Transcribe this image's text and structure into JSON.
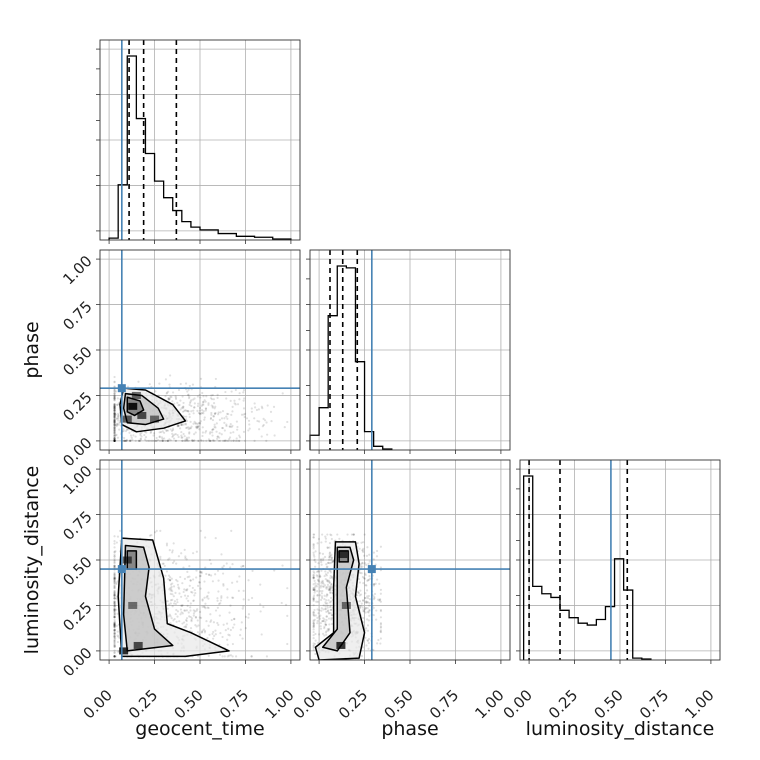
{
  "chart_data": {
    "type": "corner",
    "parameters": [
      "geocent_time",
      "phase",
      "luminosity_distance"
    ],
    "axis_labels": [
      "geocent_time",
      "phase",
      "luminosity_distance"
    ],
    "range": [
      -0.05,
      1.05
    ],
    "tick_values": [
      0.0,
      0.25,
      0.5,
      0.75,
      1.0
    ],
    "tick_labels": [
      "0.00",
      "0.25",
      "0.50",
      "0.75",
      "1.00"
    ],
    "grid": true,
    "truths": [
      0.07,
      0.29,
      0.45
    ],
    "truth_color": "#4682b4",
    "contour_color": "#000000",
    "histograms": [
      {
        "parameter": "geocent_time",
        "bin_edges": [
          0.0,
          0.05,
          0.1,
          0.15,
          0.2,
          0.25,
          0.3,
          0.35,
          0.4,
          0.45,
          0.5,
          0.6,
          0.7,
          0.8,
          0.9,
          1.0
        ],
        "counts": [
          0.01,
          0.3,
          1.0,
          0.66,
          0.47,
          0.32,
          0.23,
          0.16,
          0.1,
          0.07,
          0.055,
          0.035,
          0.02,
          0.015,
          0.005
        ],
        "quantiles": [
          0.11,
          0.19,
          0.37
        ]
      },
      {
        "parameter": "phase",
        "bin_edges": [
          -0.05,
          0.0,
          0.05,
          0.1,
          0.15,
          0.2,
          0.25,
          0.3,
          0.35,
          0.4
        ],
        "counts": [
          0.08,
          0.23,
          0.73,
          1.0,
          0.99,
          0.48,
          0.1,
          0.02,
          0.005
        ],
        "quantiles": [
          0.06,
          0.13,
          0.21
        ]
      },
      {
        "parameter": "luminosity_distance",
        "bin_edges": [
          -0.03,
          0.02,
          0.07,
          0.12,
          0.17,
          0.22,
          0.27,
          0.32,
          0.37,
          0.42,
          0.47,
          0.52,
          0.57,
          0.62,
          0.67
        ],
        "counts": [
          1.0,
          0.4,
          0.36,
          0.34,
          0.27,
          0.23,
          0.2,
          0.19,
          0.22,
          0.29,
          0.55,
          0.38,
          0.01,
          0.005
        ],
        "quantiles": [
          0.0,
          0.17,
          0.54
        ]
      }
    ],
    "scatter_panels": [
      {
        "x": "geocent_time",
        "y": "phase",
        "core_density": [
          {
            "x": 0.13,
            "y": 0.19,
            "level": 1.0
          },
          {
            "x": 0.18,
            "y": 0.14,
            "level": 0.6
          },
          {
            "x": 0.1,
            "y": 0.12,
            "level": 0.5
          },
          {
            "x": 0.25,
            "y": 0.12,
            "level": 0.35
          },
          {
            "x": 0.15,
            "y": 0.25,
            "level": 0.4
          }
        ],
        "contours": [
          [
            [
              0.08,
              0.29
            ],
            [
              0.2,
              0.28
            ],
            [
              0.35,
              0.2
            ],
            [
              0.42,
              0.11
            ],
            [
              0.3,
              0.07
            ],
            [
              0.15,
              0.05
            ],
            [
              0.07,
              0.09
            ],
            [
              0.06,
              0.2
            ]
          ],
          [
            [
              0.09,
              0.26
            ],
            [
              0.18,
              0.25
            ],
            [
              0.27,
              0.18
            ],
            [
              0.3,
              0.12
            ],
            [
              0.2,
              0.09
            ],
            [
              0.1,
              0.1
            ],
            [
              0.08,
              0.18
            ]
          ],
          [
            [
              0.1,
              0.24
            ],
            [
              0.17,
              0.22
            ],
            [
              0.19,
              0.17
            ],
            [
              0.14,
              0.14
            ],
            [
              0.1,
              0.16
            ]
          ]
        ],
        "cloud": {
          "x_range": [
            0.03,
            0.98
          ],
          "y_range": [
            0.0,
            0.36
          ],
          "x_center": 0.3,
          "y_center": 0.12
        }
      },
      {
        "x": "geocent_time",
        "y": "luminosity_distance",
        "core_density": [
          {
            "x": 0.08,
            "y": 0.0,
            "level": 0.85
          },
          {
            "x": 0.1,
            "y": 0.5,
            "level": 0.5
          },
          {
            "x": 0.16,
            "y": 0.03,
            "level": 0.6
          },
          {
            "x": 0.13,
            "y": 0.25,
            "level": 0.3
          }
        ],
        "contours": [
          [
            [
              0.07,
              0.62
            ],
            [
              0.24,
              0.61
            ],
            [
              0.3,
              0.4
            ],
            [
              0.32,
              0.15
            ],
            [
              0.45,
              0.1
            ],
            [
              0.66,
              0.0
            ],
            [
              0.42,
              -0.03
            ],
            [
              0.07,
              -0.03
            ],
            [
              0.05,
              0.3
            ]
          ],
          [
            [
              0.09,
              0.58
            ],
            [
              0.19,
              0.57
            ],
            [
              0.22,
              0.46
            ],
            [
              0.2,
              0.3
            ],
            [
              0.25,
              0.12
            ],
            [
              0.35,
              0.03
            ],
            [
              0.1,
              0.0
            ],
            [
              0.08,
              0.2
            ]
          ],
          [
            [
              0.1,
              0.55
            ],
            [
              0.15,
              0.55
            ],
            [
              0.15,
              0.45
            ],
            [
              0.1,
              0.45
            ]
          ]
        ],
        "cloud": {
          "x_range": [
            0.03,
            0.98
          ],
          "y_range": [
            -0.03,
            0.66
          ],
          "x_center": 0.25,
          "y_center": 0.25
        }
      },
      {
        "x": "phase",
        "y": "luminosity_distance",
        "core_density": [
          {
            "x": 0.13,
            "y": 0.53,
            "level": 0.65
          },
          {
            "x": 0.12,
            "y": 0.03,
            "level": 0.8
          },
          {
            "x": 0.15,
            "y": 0.25,
            "level": 0.35
          }
        ],
        "contours": [
          [
            [
              0.09,
              0.6
            ],
            [
              0.2,
              0.6
            ],
            [
              0.22,
              0.48
            ],
            [
              0.2,
              0.3
            ],
            [
              0.25,
              0.1
            ],
            [
              0.22,
              -0.04
            ],
            [
              0.0,
              -0.05
            ],
            [
              -0.02,
              0.02
            ],
            [
              0.08,
              0.1
            ],
            [
              0.08,
              0.35
            ]
          ],
          [
            [
              0.1,
              0.57
            ],
            [
              0.17,
              0.57
            ],
            [
              0.19,
              0.5
            ],
            [
              0.15,
              0.35
            ],
            [
              0.17,
              0.1
            ],
            [
              0.1,
              0.0
            ],
            [
              0.02,
              0.02
            ],
            [
              0.1,
              0.12
            ]
          ],
          [
            [
              0.11,
              0.55
            ],
            [
              0.16,
              0.55
            ],
            [
              0.16,
              0.49
            ],
            [
              0.11,
              0.49
            ]
          ]
        ],
        "cloud": {
          "x_range": [
            -0.03,
            0.34
          ],
          "y_range": [
            -0.05,
            0.64
          ],
          "x_center": 0.13,
          "y_center": 0.3
        }
      }
    ]
  }
}
